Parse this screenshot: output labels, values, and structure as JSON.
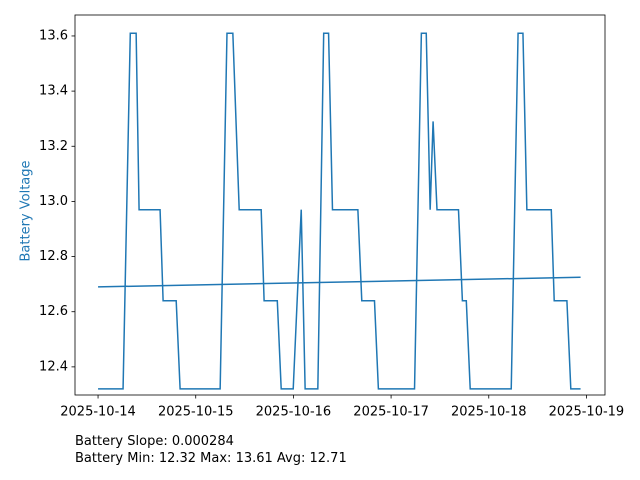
{
  "chart_data": {
    "type": "line",
    "y_label": "Battery Voltage",
    "y_label_color": "#1f77b4",
    "annotations": [
      "Battery Slope: 0.000284",
      "Battery Min: 12.32 Max: 13.61 Avg: 12.71"
    ],
    "series": [
      {
        "color": "#1f77b4",
        "x": [
          0,
          0.256,
          0.33,
          0.39,
          0.42,
          0.635,
          0.666,
          0.8,
          0.84,
          1.25,
          1.32,
          1.38,
          1.445,
          1.67,
          1.7,
          1.835,
          1.875,
          1.998,
          2.08,
          2.12,
          2.25,
          2.31,
          2.36,
          2.4,
          2.66,
          2.7,
          2.83,
          2.87,
          3.24,
          3.31,
          3.36,
          3.4,
          3.43,
          3.47,
          3.69,
          3.73,
          3.77,
          3.81,
          4.23,
          4.3,
          4.35,
          4.39,
          4.64,
          4.67,
          4.8,
          4.84,
          4.94
        ],
        "values": [
          12.32,
          12.32,
          13.61,
          13.61,
          12.97,
          12.97,
          12.64,
          12.64,
          12.32,
          12.32,
          13.61,
          13.61,
          12.97,
          12.97,
          12.64,
          12.64,
          12.32,
          12.32,
          12.97,
          12.32,
          12.32,
          13.61,
          13.61,
          12.97,
          12.97,
          12.64,
          12.64,
          12.32,
          12.32,
          13.61,
          13.61,
          12.97,
          13.29,
          12.97,
          12.97,
          12.64,
          12.64,
          12.32,
          12.32,
          13.61,
          13.61,
          12.97,
          12.97,
          12.64,
          12.64,
          12.32,
          12.32
        ]
      },
      {
        "color": "#1f77b4",
        "x": [
          0,
          4.94
        ],
        "values": [
          12.69,
          12.725
        ]
      }
    ],
    "xlim": [
      -0.236,
      5.19
    ],
    "ylim": [
      12.298,
      13.676
    ],
    "xticks": [
      {
        "value": 0,
        "label": "2025-10-14"
      },
      {
        "value": 1,
        "label": "2025-10-15"
      },
      {
        "value": 2,
        "label": "2025-10-16"
      },
      {
        "value": 3,
        "label": "2025-10-17"
      },
      {
        "value": 4,
        "label": "2025-10-18"
      },
      {
        "value": 5,
        "label": "2025-10-19"
      }
    ],
    "yticks": [
      12.4,
      12.6,
      12.8,
      {
        "value": 13,
        "label": "13.0"
      },
      13.2,
      13.4,
      13.6
    ]
  }
}
